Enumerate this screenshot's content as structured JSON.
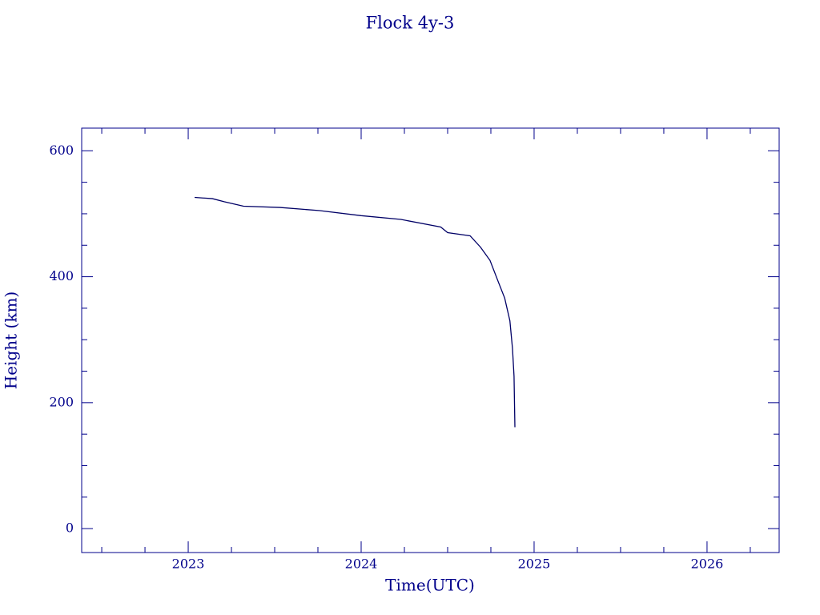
{
  "chart_data": {
    "type": "line",
    "title": "Flock 4y-3",
    "xlabel": "Time(UTC)",
    "ylabel": "Height (km)",
    "xlim": [
      2022.384,
      2026.417
    ],
    "xticks": [
      2023,
      2024,
      2025,
      2026
    ],
    "ylim": [
      -38,
      636
    ],
    "yticks": [
      0,
      200,
      400,
      600
    ],
    "series": [
      {
        "color": "#000066",
        "x": [
          2023.037,
          2023.14,
          2023.21,
          2023.32,
          2023.53,
          2023.76,
          2024.0,
          2024.23,
          2024.46,
          2024.5,
          2024.63,
          2024.69,
          2024.745,
          2024.79,
          2024.83,
          2024.86,
          2024.875,
          2024.884,
          2024.889
        ],
        "values": [
          526,
          524,
          519,
          512,
          510,
          505,
          497,
          491,
          479,
          470,
          465,
          447,
          426,
          394,
          366,
          330,
          286,
          242,
          161
        ]
      }
    ]
  }
}
